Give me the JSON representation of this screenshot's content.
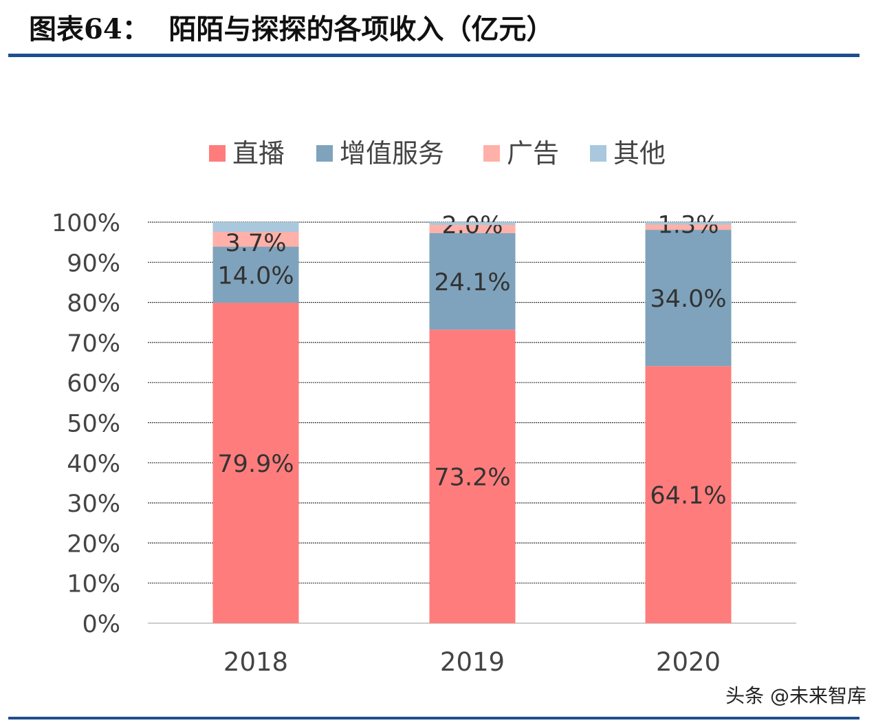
{
  "title": "图表64：  陌陌与探探的各项收入（亿元）",
  "watermark": "头条 @未来智库",
  "chart_data": {
    "type": "bar",
    "stacked": true,
    "categories": [
      "2018",
      "2019",
      "2020"
    ],
    "series": [
      {
        "name": "直播",
        "color": "#FF7C7C",
        "values": [
          79.9,
          73.2,
          64.1
        ],
        "labels": [
          "79.9%",
          "73.2%",
          "64.1%"
        ]
      },
      {
        "name": "增值服务",
        "color": "#7FA3BC",
        "values": [
          14.0,
          24.1,
          34.0
        ],
        "labels": [
          "14.0%",
          "24.1%",
          "34.0%"
        ]
      },
      {
        "name": "广告",
        "color": "#FFB0A8",
        "values": [
          3.7,
          2.0,
          1.3
        ],
        "labels": [
          "3.7%",
          "2.0%",
          "1.3%"
        ]
      },
      {
        "name": "其他",
        "color": "#A9C8DD",
        "values": [
          2.4,
          0.7,
          0.6
        ],
        "labels": [
          "",
          "",
          ""
        ]
      }
    ],
    "yticks": [
      "0%",
      "10%",
      "20%",
      "30%",
      "40%",
      "50%",
      "60%",
      "70%",
      "80%",
      "90%",
      "100%"
    ],
    "ylim": [
      0,
      100
    ],
    "grid": true,
    "legend": "top"
  }
}
